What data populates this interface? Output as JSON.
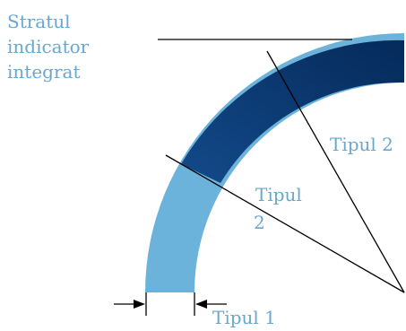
{
  "labels": {
    "integrated_layer_line1": "Stratul",
    "integrated_layer_line2": "indicator",
    "integrated_layer_line3": "integrat",
    "type2_outer": "Tipul 2",
    "type2_inner_line1": "Tipul",
    "type2_inner_line2": "2",
    "type1": "Tipul 1"
  },
  "colors": {
    "label_text": "#6aa7cf",
    "light_band": "#6cb3dc",
    "dark_band_mid": "#134a8a",
    "dark_band_end": "#052a5a",
    "line": "#000000"
  }
}
